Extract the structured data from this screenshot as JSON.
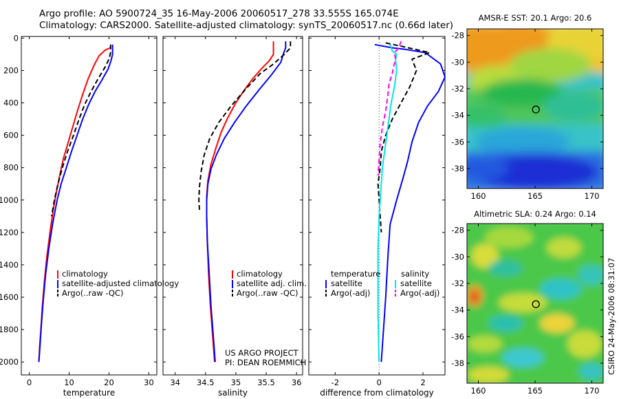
{
  "header": {
    "title_line1": "Argo profile: AO 5900724_35 16-May-2006 20060517_278 33.555S 165.074E",
    "title_line2": "Climatology: CARS2000. Satellite-adjusted climatology: synTS_20060517.nc (0.66d later)"
  },
  "colors": {
    "climatology": "#ff0000",
    "satellite": "#0000ff",
    "argo": "#000000",
    "salinity_satellite": "#00e5e5",
    "salinity_argo": "#ff00ff"
  },
  "chart_data": [
    {
      "type": "line",
      "id": "temperature",
      "xlabel": "temperature",
      "ylabel": "",
      "xlim": [
        -2,
        32
      ],
      "ylim": [
        2080,
        -10
      ],
      "xticks": [
        0,
        10,
        20,
        30
      ],
      "yticks": [
        0,
        200,
        400,
        600,
        800,
        1000,
        1200,
        1400,
        1600,
        1800,
        2000
      ],
      "legend": [
        "climatology",
        "satellite-adjusted climatology",
        "Argo(..raw -QC)"
      ],
      "series": [
        {
          "name": "climatology",
          "style": "red-solid",
          "points": [
            [
              20.3,
              60
            ],
            [
              19.0,
              75
            ],
            [
              17.5,
              110
            ],
            [
              16.2,
              170
            ],
            [
              14.8,
              250
            ],
            [
              13.5,
              340
            ],
            [
              12.2,
              440
            ],
            [
              11.0,
              540
            ],
            [
              9.8,
              640
            ],
            [
              8.6,
              740
            ],
            [
              7.7,
              840
            ],
            [
              6.8,
              950
            ],
            [
              6.0,
              1060
            ],
            [
              5.2,
              1200
            ],
            [
              4.4,
              1350
            ],
            [
              3.8,
              1500
            ],
            [
              3.3,
              1650
            ],
            [
              2.9,
              1800
            ],
            [
              2.6,
              1900
            ],
            [
              2.4,
              2000
            ]
          ]
        },
        {
          "name": "satellite-adjusted climatology",
          "style": "blue-solid",
          "points": [
            [
              20.9,
              40
            ],
            [
              20.9,
              100
            ],
            [
              20.5,
              140
            ],
            [
              19.8,
              190
            ],
            [
              18.2,
              260
            ],
            [
              16.5,
              330
            ],
            [
              14.9,
              410
            ],
            [
              13.4,
              500
            ],
            [
              12.0,
              600
            ],
            [
              10.6,
              700
            ],
            [
              9.3,
              800
            ],
            [
              8.0,
              900
            ],
            [
              7.0,
              1000
            ],
            [
              5.9,
              1140
            ],
            [
              4.9,
              1300
            ],
            [
              4.1,
              1460
            ],
            [
              3.5,
              1620
            ],
            [
              3.0,
              1780
            ],
            [
              2.7,
              1900
            ],
            [
              2.4,
              2000
            ]
          ]
        },
        {
          "name": "Argo(..raw -QC)",
          "style": "black-dashed",
          "points": [
            [
              20.4,
              40
            ],
            [
              20.4,
              90
            ],
            [
              20.0,
              130
            ],
            [
              19.0,
              180
            ],
            [
              17.3,
              250
            ],
            [
              15.5,
              330
            ],
            [
              13.9,
              410
            ],
            [
              12.5,
              500
            ],
            [
              11.1,
              600
            ],
            [
              9.6,
              700
            ],
            [
              8.3,
              800
            ],
            [
              7.2,
              900
            ],
            [
              6.3,
              1000
            ],
            [
              5.6,
              1100
            ]
          ]
        }
      ]
    },
    {
      "type": "line",
      "id": "salinity",
      "xlabel": "salinity",
      "ylabel": "",
      "xlim": [
        33.8,
        36.1
      ],
      "ylim": [
        2080,
        -10
      ],
      "xticks": [
        34,
        34.5,
        35,
        35.5,
        36
      ],
      "legend": [
        "climatology",
        "satellite adj. clim.",
        "Argo(..raw -QC)"
      ],
      "series": [
        {
          "name": "climatology",
          "style": "red-solid",
          "points": [
            [
              35.62,
              20
            ],
            [
              35.62,
              100
            ],
            [
              35.55,
              140
            ],
            [
              35.42,
              190
            ],
            [
              35.28,
              250
            ],
            [
              35.14,
              320
            ],
            [
              35.0,
              400
            ],
            [
              34.87,
              490
            ],
            [
              34.76,
              580
            ],
            [
              34.67,
              680
            ],
            [
              34.59,
              780
            ],
            [
              34.54,
              880
            ],
            [
              34.52,
              980
            ],
            [
              34.52,
              1100
            ],
            [
              34.53,
              1250
            ],
            [
              34.55,
              1450
            ],
            [
              34.58,
              1650
            ],
            [
              34.62,
              1850
            ],
            [
              34.65,
              2000
            ]
          ]
        },
        {
          "name": "satellite adj. clim.",
          "style": "blue-solid",
          "points": [
            [
              35.82,
              20
            ],
            [
              35.82,
              60
            ],
            [
              35.78,
              100
            ],
            [
              35.74,
              150
            ],
            [
              35.58,
              230
            ],
            [
              35.38,
              320
            ],
            [
              35.17,
              420
            ],
            [
              34.98,
              520
            ],
            [
              34.81,
              620
            ],
            [
              34.68,
              720
            ],
            [
              34.59,
              810
            ],
            [
              34.54,
              900
            ],
            [
              34.52,
              1000
            ],
            [
              34.52,
              1100
            ],
            [
              34.53,
              1250
            ],
            [
              34.56,
              1450
            ],
            [
              34.59,
              1650
            ],
            [
              34.63,
              1850
            ],
            [
              34.66,
              2000
            ]
          ]
        },
        {
          "name": "Argo(..raw -QC)",
          "style": "black-dashed",
          "points": [
            [
              35.9,
              20
            ],
            [
              35.9,
              60
            ],
            [
              35.8,
              100
            ],
            [
              35.62,
              160
            ],
            [
              35.4,
              220
            ],
            [
              35.15,
              320
            ],
            [
              34.92,
              420
            ],
            [
              34.72,
              520
            ],
            [
              34.57,
              620
            ],
            [
              34.48,
              720
            ],
            [
              34.43,
              820
            ],
            [
              34.4,
              920
            ],
            [
              34.39,
              1000
            ],
            [
              34.4,
              1060
            ]
          ]
        }
      ],
      "annotation": [
        "US ARGO PROJECT",
        "PI: DEAN ROEMMICH"
      ]
    },
    {
      "type": "line",
      "id": "difference",
      "xlabel": "difference from climatology",
      "ylabel": "",
      "xlim": [
        -3.2,
        3.0
      ],
      "ylim": [
        2080,
        -10
      ],
      "xticks": [
        -2,
        0,
        2
      ],
      "legend": [
        "temperature",
        "satellite",
        "Argo(-adj)",
        "salinity",
        "satellite",
        "Argo(-adj)"
      ],
      "series": [
        {
          "name": "satellite",
          "group": "temperature",
          "style": "blue-solid",
          "points": [
            [
              -0.2,
              40
            ],
            [
              0.6,
              60
            ],
            [
              1.2,
              70
            ],
            [
              2.1,
              90
            ],
            [
              2.8,
              160
            ],
            [
              3.0,
              240
            ],
            [
              2.7,
              330
            ],
            [
              2.2,
              420
            ],
            [
              1.8,
              520
            ],
            [
              1.5,
              640
            ],
            [
              1.3,
              760
            ],
            [
              1.1,
              860
            ],
            [
              0.8,
              1000
            ],
            [
              0.5,
              1150
            ],
            [
              0.4,
              1350
            ],
            [
              0.3,
              1600
            ],
            [
              0.2,
              1800
            ],
            [
              0.1,
              2000
            ]
          ]
        },
        {
          "name": "Argo(-adj)",
          "group": "temperature",
          "style": "black-dashed",
          "points": [
            [
              0.3,
              30
            ],
            [
              1.0,
              50
            ],
            [
              2.3,
              90
            ],
            [
              1.5,
              130
            ],
            [
              1.7,
              200
            ],
            [
              1.4,
              300
            ],
            [
              1.0,
              400
            ],
            [
              0.6,
              500
            ],
            [
              0.3,
              600
            ],
            [
              0.1,
              700
            ],
            [
              0.05,
              800
            ],
            [
              -0.05,
              900
            ],
            [
              0.0,
              1000
            ],
            [
              0.05,
              1100
            ],
            [
              0.1,
              1200
            ]
          ]
        },
        {
          "name": "satellite",
          "group": "salinity",
          "style": "cyan-solid",
          "points": [
            [
              0.5,
              40
            ],
            [
              0.6,
              80
            ],
            [
              0.8,
              100
            ],
            [
              0.75,
              130
            ],
            [
              0.8,
              200
            ],
            [
              0.7,
              300
            ],
            [
              0.55,
              400
            ],
            [
              0.45,
              500
            ],
            [
              0.35,
              600
            ],
            [
              0.25,
              700
            ],
            [
              0.15,
              800
            ],
            [
              0.1,
              900
            ],
            [
              0.05,
              1000
            ],
            [
              0.0,
              1100
            ],
            [
              -0.05,
              1300
            ],
            [
              -0.05,
              1500
            ],
            [
              -0.05,
              1700
            ],
            [
              -0.02,
              1900
            ],
            [
              0.0,
              2000
            ]
          ]
        },
        {
          "name": "Argo(-adj)",
          "group": "salinity",
          "style": "magenta-dashed",
          "points": [
            [
              1.0,
              20
            ],
            [
              0.9,
              60
            ],
            [
              0.7,
              90
            ],
            [
              0.75,
              130
            ],
            [
              0.65,
              180
            ],
            [
              0.6,
              220
            ],
            [
              0.45,
              280
            ],
            [
              0.4,
              350
            ],
            [
              0.3,
              450
            ],
            [
              0.15,
              550
            ],
            [
              0.05,
              650
            ],
            [
              0.0,
              750
            ],
            [
              -0.05,
              850
            ]
          ]
        }
      ]
    },
    {
      "type": "heatmap",
      "id": "sst-map",
      "title": "AMSR-E SST: 20.1 Argo: 20.6",
      "xlim": [
        159,
        171
      ],
      "ylim": [
        -39.5,
        -27.5
      ],
      "xticks": [
        160,
        165,
        170
      ],
      "yticks": [
        -28,
        -30,
        -32,
        -34,
        -36,
        -38
      ],
      "marker": [
        165.07,
        -33.56
      ]
    },
    {
      "type": "heatmap",
      "id": "sla-map",
      "title": "Altimetric SLA: 0.24 Argo: 0.14",
      "xlim": [
        159,
        171
      ],
      "ylim": [
        -39.5,
        -27.5
      ],
      "xticks": [
        160,
        165,
        170
      ],
      "yticks": [
        -28,
        -30,
        -32,
        -34,
        -36,
        -38
      ],
      "marker": [
        165.07,
        -33.56
      ]
    }
  ],
  "footer": {
    "vertical_label": "CSIRO 24-May-2006 08:31:07"
  }
}
